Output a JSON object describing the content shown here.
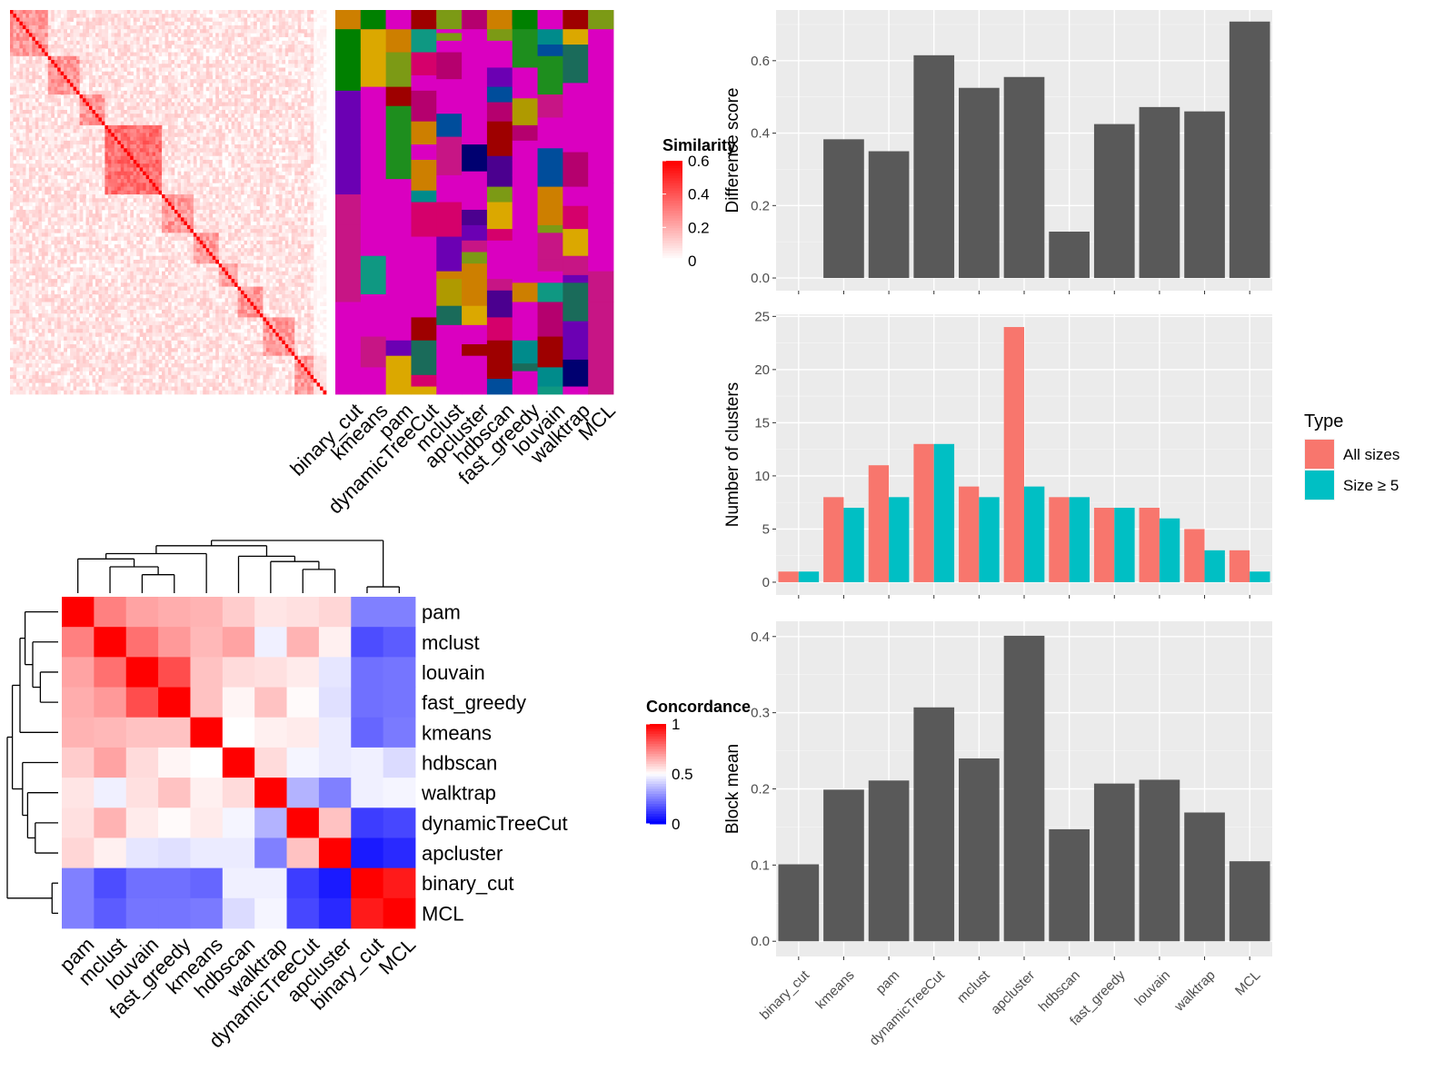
{
  "chart_data": [
    {
      "id": "similarity_matrix",
      "type": "heatmap",
      "description_source": "cluster-ordered similarity heatmap with method membership annotation",
      "legend": {
        "title": "Similarity",
        "ticks": [
          "0",
          "0.2",
          "0.4",
          "0.6"
        ],
        "colors": [
          "#ffffff",
          "#ff0000"
        ],
        "range": [
          0,
          0.6
        ]
      },
      "methods": [
        "binary_cut",
        "kmeans",
        "pam",
        "dynamicTreeCut",
        "mclust",
        "apcluster",
        "hdbscan",
        "fast_greedy",
        "louvain",
        "walktrap",
        "MCL"
      ],
      "n_terms": 100
    },
    {
      "id": "concordance_heatmap",
      "type": "heatmap",
      "legend": {
        "title": "Concordance",
        "ticks": [
          "0",
          "0.5",
          "1"
        ],
        "colors": [
          "#0000ff",
          "#ffffff",
          "#ff0000"
        ],
        "range": [
          0,
          1
        ]
      },
      "methods": [
        "pam",
        "mclust",
        "louvain",
        "fast_greedy",
        "kmeans",
        "hdbscan",
        "walktrap",
        "dynamicTreeCut",
        "apcluster",
        "binary_cut",
        "MCL"
      ],
      "matrix": [
        [
          1.0,
          0.75,
          0.68,
          0.66,
          0.65,
          0.6,
          0.55,
          0.56,
          0.58,
          0.25,
          0.25
        ],
        [
          0.75,
          1.0,
          0.78,
          0.7,
          0.64,
          0.68,
          0.47,
          0.65,
          0.53,
          0.15,
          0.18
        ],
        [
          0.68,
          0.78,
          1.0,
          0.85,
          0.62,
          0.57,
          0.56,
          0.54,
          0.45,
          0.22,
          0.23
        ],
        [
          0.66,
          0.7,
          0.85,
          1.0,
          0.62,
          0.52,
          0.62,
          0.51,
          0.44,
          0.22,
          0.23
        ],
        [
          0.65,
          0.64,
          0.62,
          0.62,
          1.0,
          0.5,
          0.53,
          0.54,
          0.46,
          0.2,
          0.24
        ],
        [
          0.6,
          0.68,
          0.57,
          0.52,
          0.5,
          1.0,
          0.57,
          0.48,
          0.46,
          0.47,
          0.43
        ],
        [
          0.55,
          0.47,
          0.56,
          0.62,
          0.53,
          0.57,
          1.0,
          0.35,
          0.25,
          0.47,
          0.48
        ],
        [
          0.56,
          0.65,
          0.54,
          0.51,
          0.54,
          0.48,
          0.35,
          1.0,
          0.62,
          0.12,
          0.14
        ],
        [
          0.58,
          0.53,
          0.45,
          0.44,
          0.46,
          0.46,
          0.25,
          0.62,
          1.0,
          0.05,
          0.08
        ],
        [
          0.25,
          0.15,
          0.22,
          0.22,
          0.2,
          0.47,
          0.47,
          0.12,
          0.05,
          1.0,
          0.95
        ],
        [
          0.25,
          0.18,
          0.23,
          0.23,
          0.24,
          0.43,
          0.48,
          0.14,
          0.08,
          0.95,
          1.0
        ]
      ]
    },
    {
      "id": "difference_score",
      "type": "bar",
      "categories": [
        "binary_cut",
        "kmeans",
        "pam",
        "dynamicTreeCut",
        "mclust",
        "apcluster",
        "hdbscan",
        "fast_greedy",
        "louvain",
        "walktrap",
        "MCL"
      ],
      "values": [
        0.0,
        0.383,
        0.35,
        0.615,
        0.525,
        0.555,
        0.128,
        0.425,
        0.472,
        0.46,
        0.708
      ],
      "ylabel": "Difference score",
      "ylim": [
        -0.035,
        0.74
      ],
      "yticks": [
        0.0,
        0.2,
        0.4,
        0.6
      ],
      "ytick_labels": [
        "0.0",
        "0.2",
        "0.4",
        "0.6"
      ],
      "bar_color": "#595959"
    },
    {
      "id": "number_of_clusters",
      "type": "bar",
      "categories": [
        "binary_cut",
        "kmeans",
        "pam",
        "dynamicTreeCut",
        "mclust",
        "apcluster",
        "hdbscan",
        "fast_greedy",
        "louvain",
        "walktrap",
        "MCL"
      ],
      "series": [
        {
          "name": "All sizes",
          "color": "#F8766D",
          "values": [
            1,
            8,
            11,
            13,
            9,
            24,
            8,
            7,
            7,
            5,
            3
          ]
        },
        {
          "name": "Size ≥ 5",
          "color": "#00BFC4",
          "values": [
            1,
            7,
            8,
            13,
            8,
            9,
            8,
            7,
            6,
            3,
            1
          ]
        }
      ],
      "ylabel": "Number of clusters",
      "ylim": [
        -1.2,
        25.2
      ],
      "yticks": [
        0,
        5,
        10,
        15,
        20,
        25
      ],
      "ytick_labels": [
        "0",
        "5",
        "10",
        "15",
        "20",
        "25"
      ],
      "legend": {
        "title": "Type",
        "position": "right"
      }
    },
    {
      "id": "block_mean",
      "type": "bar",
      "categories": [
        "binary_cut",
        "kmeans",
        "pam",
        "dynamicTreeCut",
        "mclust",
        "apcluster",
        "hdbscan",
        "fast_greedy",
        "louvain",
        "walktrap",
        "MCL"
      ],
      "values": [
        0.101,
        0.199,
        0.211,
        0.307,
        0.24,
        0.401,
        0.147,
        0.207,
        0.212,
        0.169,
        0.105
      ],
      "ylabel": "Block mean",
      "ylim": [
        -0.02,
        0.42
      ],
      "yticks": [
        0.0,
        0.1,
        0.2,
        0.3,
        0.4
      ],
      "ytick_labels": [
        "0.0",
        "0.1",
        "0.2",
        "0.3",
        "0.4"
      ],
      "bar_color": "#595959"
    }
  ]
}
